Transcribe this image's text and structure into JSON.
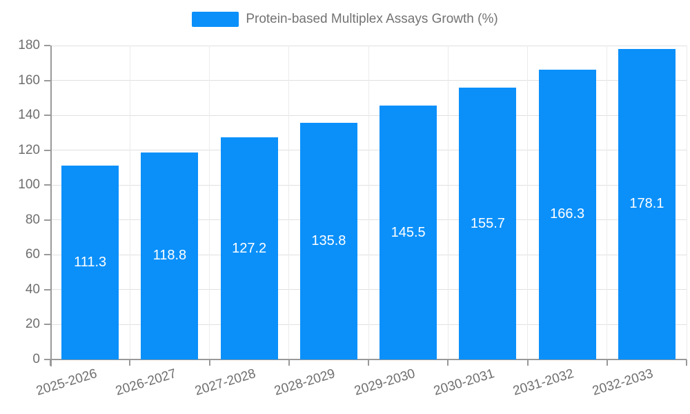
{
  "chart_data": {
    "type": "bar",
    "title": "",
    "legend": [
      "Protein-based Multiplex Assays Growth (%)"
    ],
    "legend_position": "top-center",
    "categories": [
      "2025-2026",
      "2026-2027",
      "2027-2028",
      "2028-2029",
      "2029-2030",
      "2030-2031",
      "2031-2032",
      "2032-2033"
    ],
    "series": [
      {
        "name": "Protein-based Multiplex Assays Growth (%)",
        "values": [
          111.3,
          118.8,
          127.2,
          135.8,
          145.5,
          155.7,
          166.3,
          178.1
        ]
      }
    ],
    "value_labels_shown": true,
    "xlabel": "",
    "ylabel": "",
    "ylim": [
      0,
      180
    ],
    "yticks": [
      0,
      20,
      40,
      60,
      80,
      100,
      120,
      140,
      160,
      180
    ],
    "grid": {
      "horizontal": true,
      "vertical": true
    },
    "x_label_rotation_deg": -17
  },
  "colors": {
    "bar": "#0b90fa",
    "value_label": "#ffffff",
    "axis_line": "#999999",
    "tick_label": "#6e6e6e",
    "legend_text": "#737373",
    "grid_horizontal": "#e0e0e0",
    "grid_vertical": "#ebebeb",
    "background": "#ffffff"
  }
}
